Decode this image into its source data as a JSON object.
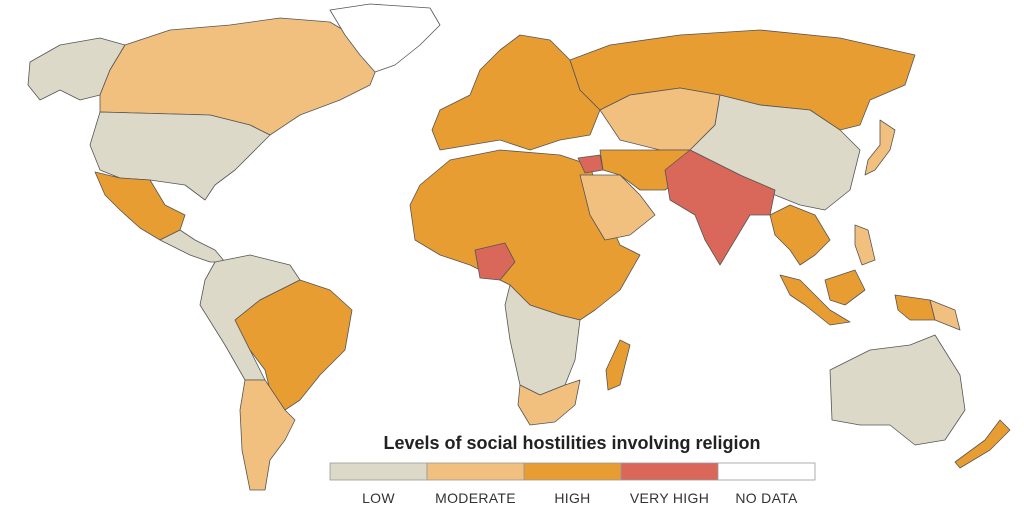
{
  "title": "Levels of social hostilities involving religion",
  "legend": [
    {
      "label": "LOW",
      "color": "#dcd9c8"
    },
    {
      "label": "MODERATE",
      "color": "#f2c07e"
    },
    {
      "label": "HIGH",
      "color": "#e89d32"
    },
    {
      "label": "VERY HIGH",
      "color": "#d9675a"
    },
    {
      "label": "NO DATA",
      "color": "#ffffff"
    }
  ]
}
